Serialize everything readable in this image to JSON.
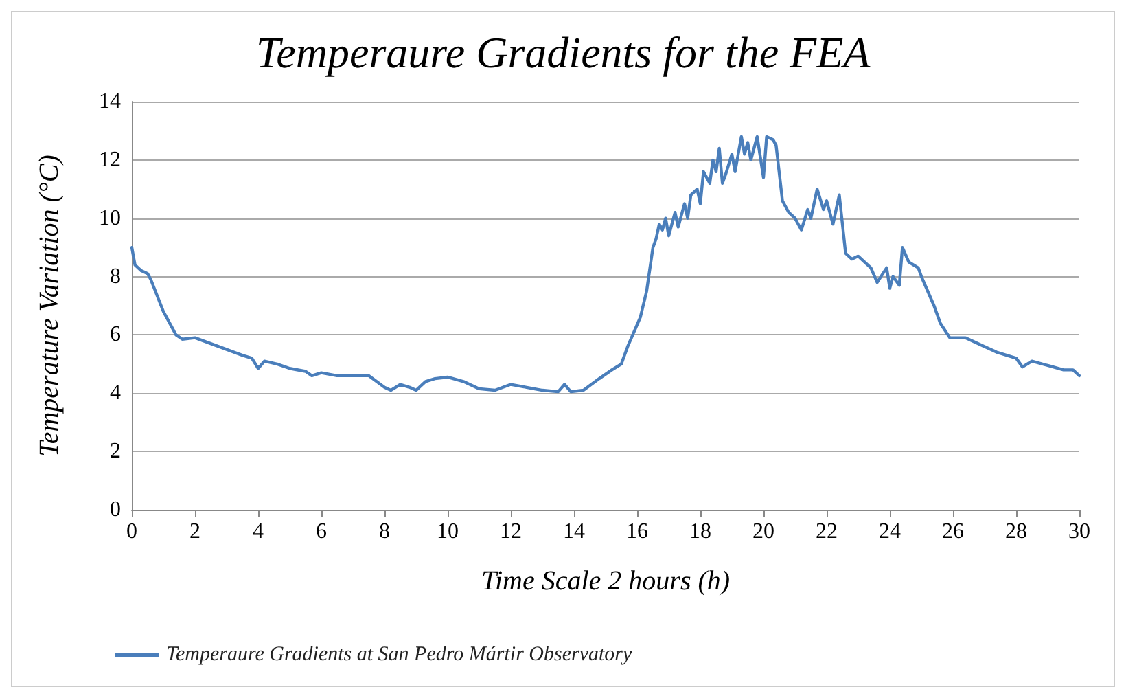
{
  "chart_data": {
    "type": "line",
    "title": "Temperaure Gradients for the FEA",
    "xlabel": "Time Scale 2 hours (h)",
    "ylabel": "Temperature Variation (°C)",
    "xlim": [
      0,
      30
    ],
    "xticks": [
      0,
      2,
      4,
      6,
      8,
      10,
      12,
      14,
      16,
      18,
      20,
      22,
      24,
      26,
      28,
      30
    ],
    "ylim": [
      0,
      14
    ],
    "yticks": [
      0,
      2,
      4,
      6,
      8,
      10,
      12,
      14
    ],
    "grid": "y",
    "legend": "bottom left",
    "marker": "none",
    "line_style": "solid",
    "series": [
      {
        "name": "Temperaure Gradients at San Pedro Mártir Observatory",
        "color": "#4a7ebb",
        "x": [
          0,
          0.1,
          0.3,
          0.5,
          0.6,
          1.0,
          1.4,
          1.6,
          2.0,
          2.5,
          3.0,
          3.5,
          3.8,
          4.0,
          4.2,
          4.6,
          5.0,
          5.5,
          5.7,
          6.0,
          6.5,
          7.0,
          7.5,
          8.0,
          8.2,
          8.5,
          8.8,
          9.0,
          9.3,
          9.6,
          10.0,
          10.5,
          11.0,
          11.5,
          12.0,
          12.5,
          13.0,
          13.5,
          13.7,
          13.9,
          14.3,
          14.8,
          15.2,
          15.5,
          15.7,
          15.9,
          16.1,
          16.3,
          16.5,
          16.6,
          16.7,
          16.8,
          16.9,
          17.0,
          17.2,
          17.3,
          17.5,
          17.6,
          17.7,
          17.9,
          18.0,
          18.1,
          18.3,
          18.4,
          18.5,
          18.6,
          18.7,
          18.8,
          19.0,
          19.1,
          19.3,
          19.4,
          19.5,
          19.6,
          19.8,
          20.0,
          20.1,
          20.3,
          20.4,
          20.6,
          20.8,
          21.0,
          21.2,
          21.4,
          21.5,
          21.7,
          21.9,
          22.0,
          22.2,
          22.4,
          22.6,
          22.8,
          23.0,
          23.4,
          23.6,
          23.9,
          24.0,
          24.1,
          24.3,
          24.4,
          24.6,
          24.9,
          25.0,
          25.4,
          25.6,
          25.9,
          26.4,
          27.0,
          27.4,
          28.0,
          28.2,
          28.5,
          29.0,
          29.5,
          29.8,
          30.0
        ],
        "values": [
          9.0,
          8.4,
          8.2,
          8.1,
          7.9,
          6.8,
          6.0,
          5.85,
          5.9,
          5.7,
          5.5,
          5.3,
          5.2,
          4.85,
          5.1,
          5.0,
          4.85,
          4.75,
          4.6,
          4.7,
          4.6,
          4.6,
          4.6,
          4.2,
          4.1,
          4.3,
          4.2,
          4.1,
          4.4,
          4.5,
          4.55,
          4.4,
          4.15,
          4.1,
          4.3,
          4.2,
          4.1,
          4.05,
          4.3,
          4.05,
          4.1,
          4.5,
          4.8,
          5.0,
          5.6,
          6.1,
          6.6,
          7.5,
          9.0,
          9.3,
          9.8,
          9.6,
          10.0,
          9.4,
          10.2,
          9.7,
          10.5,
          10.0,
          10.8,
          11.0,
          10.5,
          11.6,
          11.2,
          12.0,
          11.6,
          12.4,
          11.2,
          11.5,
          12.2,
          11.6,
          12.8,
          12.2,
          12.6,
          12.0,
          12.8,
          11.4,
          12.8,
          12.7,
          12.5,
          10.6,
          10.2,
          10.0,
          9.6,
          10.3,
          10.0,
          11.0,
          10.3,
          10.6,
          9.8,
          10.8,
          8.8,
          8.6,
          8.7,
          8.3,
          7.8,
          8.3,
          7.6,
          8.0,
          7.7,
          9.0,
          8.5,
          8.3,
          8.0,
          7.0,
          6.4,
          5.9,
          5.9,
          5.6,
          5.4,
          5.2,
          4.9,
          5.1,
          4.95,
          4.8,
          4.8,
          4.6
        ]
      }
    ]
  }
}
